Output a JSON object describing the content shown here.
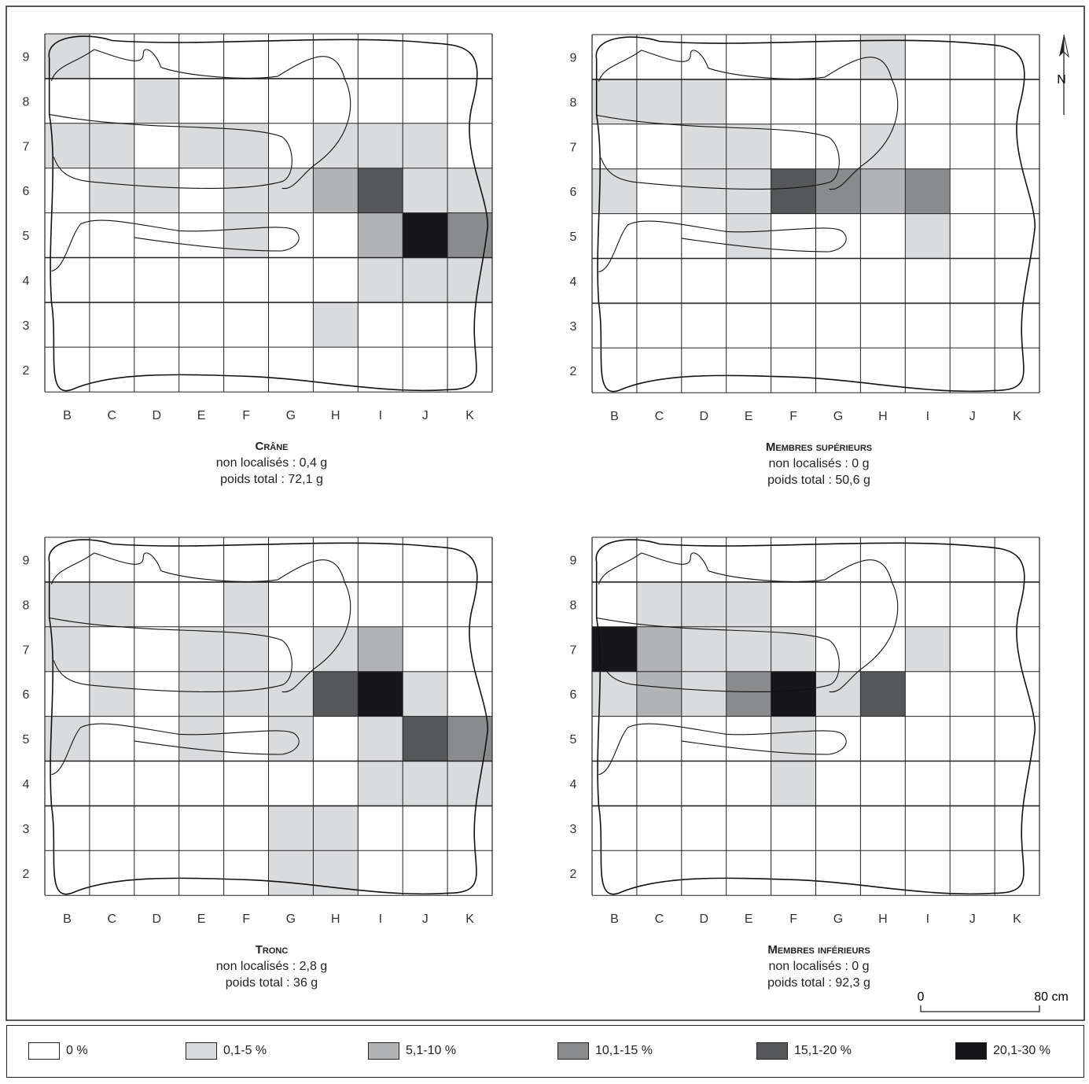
{
  "colors": {
    "class_0": "#ffffff",
    "class_1": "#dadbdc",
    "class_2": "#b2b3b4",
    "class_3": "#8a8b8c",
    "class_4": "#565759",
    "class_5": "#17161b"
  },
  "columns": [
    "B",
    "C",
    "D",
    "E",
    "F",
    "G",
    "H",
    "I",
    "J",
    "K"
  ],
  "rows": [
    "9",
    "8",
    "7",
    "6",
    "5",
    "4",
    "3",
    "2"
  ],
  "north_label": "N",
  "scale": {
    "start": "0",
    "end": "80 cm"
  },
  "legend": [
    {
      "label": "0 %",
      "color": "#ffffff"
    },
    {
      "label": "0,1-5 %",
      "color": "#dadbdc"
    },
    {
      "label": "5,1-10 %",
      "color": "#b2b3b4"
    },
    {
      "label": "10,1-15 %",
      "color": "#8a8b8c"
    },
    {
      "label": "15,1-20 %",
      "color": "#565759"
    },
    {
      "label": "20,1-30 %",
      "color": "#17161b"
    }
  ],
  "panels": [
    {
      "title": "Crâne",
      "unlocated": "non localisés : 0,4 g",
      "total": "poids total : 72,1 g",
      "grid": [
        [
          1,
          0,
          0,
          0,
          0,
          0,
          0,
          0,
          0,
          0
        ],
        [
          0,
          0,
          1,
          0,
          0,
          0,
          0,
          0,
          0,
          0
        ],
        [
          1,
          1,
          0,
          1,
          1,
          0,
          1,
          1,
          1,
          0
        ],
        [
          0,
          1,
          1,
          0,
          1,
          1,
          2,
          4,
          1,
          1
        ],
        [
          0,
          0,
          0,
          0,
          1,
          0,
          0,
          2,
          5,
          3
        ],
        [
          0,
          0,
          0,
          0,
          0,
          0,
          0,
          1,
          1,
          1
        ],
        [
          0,
          0,
          0,
          0,
          0,
          0,
          1,
          0,
          0,
          0
        ],
        [
          0,
          0,
          0,
          0,
          0,
          0,
          0,
          0,
          0,
          0
        ]
      ]
    },
    {
      "title": "Membres supérieurs",
      "unlocated": "non localisés : 0 g",
      "total": "poids total : 50,6 g",
      "grid": [
        [
          0,
          0,
          0,
          0,
          0,
          0,
          1,
          0,
          0,
          0
        ],
        [
          1,
          1,
          1,
          0,
          0,
          0,
          0,
          0,
          0,
          0
        ],
        [
          0,
          0,
          1,
          1,
          0,
          0,
          1,
          0,
          0,
          0
        ],
        [
          1,
          0,
          1,
          1,
          4,
          3,
          2,
          3,
          0,
          0
        ],
        [
          0,
          0,
          0,
          1,
          0,
          0,
          0,
          1,
          0,
          0
        ],
        [
          0,
          0,
          0,
          0,
          0,
          0,
          0,
          0,
          0,
          0
        ],
        [
          0,
          0,
          0,
          0,
          0,
          0,
          0,
          0,
          0,
          0
        ],
        [
          0,
          0,
          0,
          0,
          0,
          0,
          0,
          0,
          0,
          0
        ]
      ]
    },
    {
      "title": "Tronc",
      "unlocated": "non localisés : 2,8 g",
      "total": "poids total : 36 g",
      "grid": [
        [
          0,
          0,
          0,
          0,
          0,
          0,
          0,
          0,
          0,
          0
        ],
        [
          1,
          1,
          0,
          0,
          1,
          0,
          0,
          0,
          0,
          0
        ],
        [
          1,
          0,
          0,
          1,
          1,
          0,
          1,
          2,
          0,
          0
        ],
        [
          0,
          1,
          0,
          1,
          1,
          1,
          4,
          5,
          1,
          0
        ],
        [
          1,
          0,
          0,
          1,
          0,
          1,
          0,
          1,
          4,
          3
        ],
        [
          0,
          0,
          0,
          0,
          0,
          0,
          0,
          1,
          1,
          1
        ],
        [
          0,
          0,
          0,
          0,
          0,
          1,
          1,
          0,
          0,
          0
        ],
        [
          0,
          0,
          0,
          0,
          0,
          1,
          1,
          0,
          0,
          0
        ]
      ]
    },
    {
      "title": "Membres inférieurs",
      "unlocated": "non localisés : 0 g",
      "total": "poids total : 92,3 g",
      "grid": [
        [
          0,
          0,
          0,
          0,
          0,
          0,
          0,
          0,
          0,
          0
        ],
        [
          0,
          1,
          1,
          1,
          0,
          0,
          0,
          0,
          0,
          0
        ],
        [
          5,
          2,
          1,
          1,
          1,
          0,
          0,
          1,
          0,
          0
        ],
        [
          1,
          2,
          1,
          3,
          5,
          1,
          4,
          0,
          0,
          0
        ],
        [
          0,
          0,
          0,
          0,
          1,
          0,
          0,
          0,
          0,
          0
        ],
        [
          0,
          0,
          0,
          0,
          1,
          0,
          0,
          0,
          0,
          0
        ],
        [
          0,
          0,
          0,
          0,
          0,
          0,
          0,
          0,
          0,
          0
        ],
        [
          0,
          0,
          0,
          0,
          0,
          0,
          0,
          0,
          0,
          0
        ]
      ]
    }
  ]
}
